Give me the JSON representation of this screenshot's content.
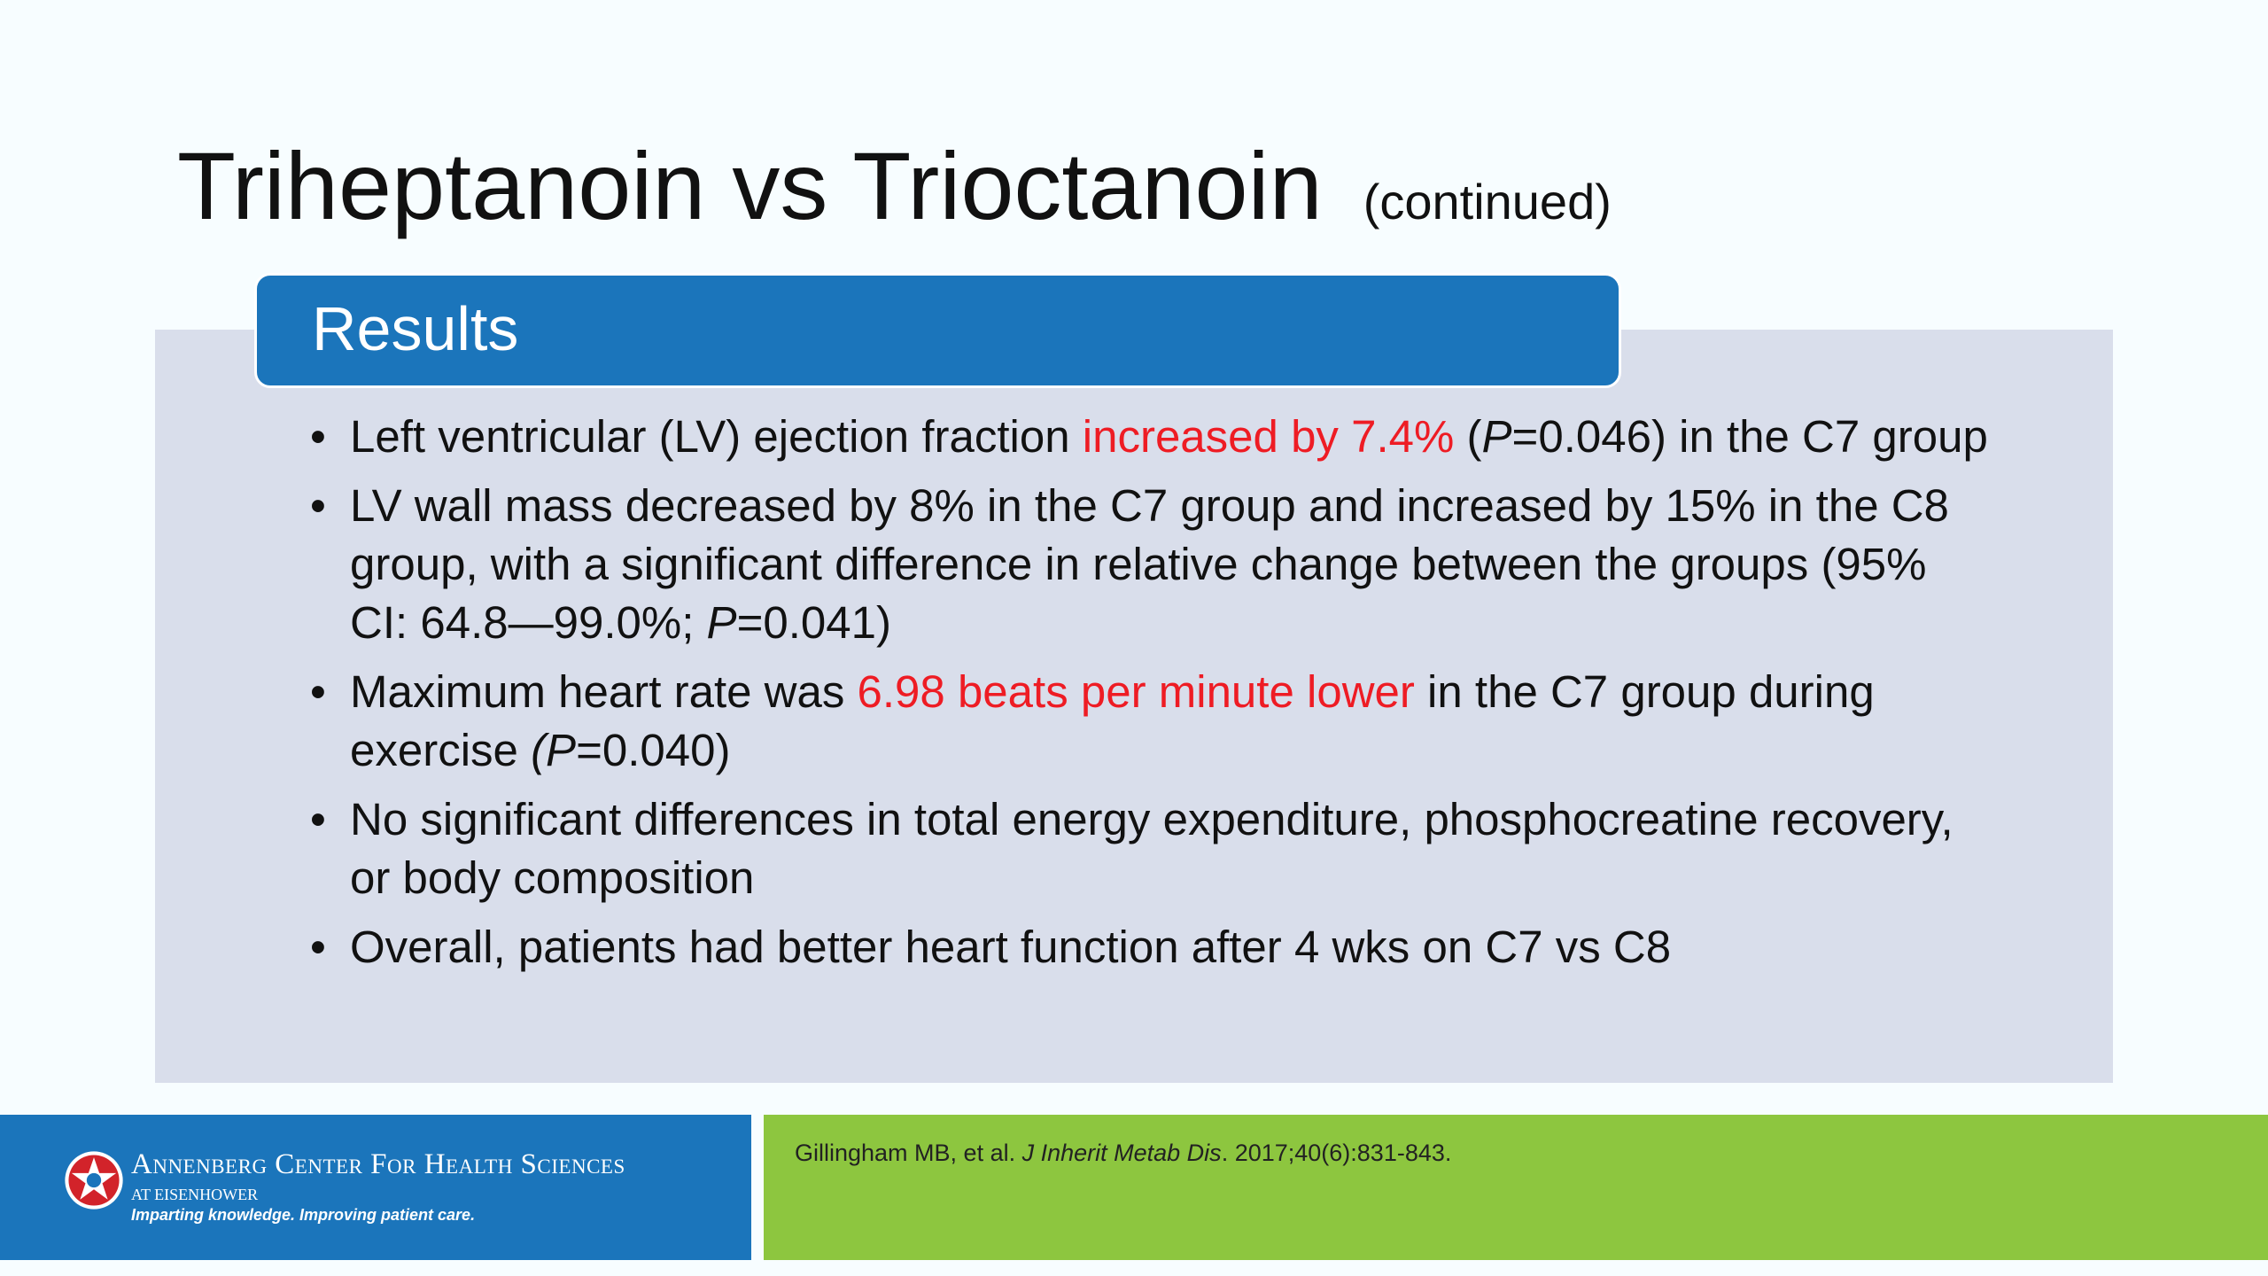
{
  "slide": {
    "title": "Triheptanoin vs Trioctanoin",
    "title_suffix": "(continued)",
    "section_header": "Results",
    "bullet_char": "•",
    "bullets": {
      "b1": {
        "t1": "Left ventricular (LV) ejection fraction ",
        "highlight": "increased by 7.4%",
        "t2": " (",
        "p": "P",
        "t3": "=0.046) in the C7 group"
      },
      "b2": {
        "t1": "LV wall mass decreased by 8% in the C7 group and increased by 15% in the C8 group, with a significant difference in relative change between the groups (95% CI: 64.8—99.0%; ",
        "p": "P",
        "t2": "=0.041)"
      },
      "b3": {
        "t1": "Maximum heart rate was ",
        "highlight": "6.98 beats per minute lower",
        "t2": " in the C7 group during exercise ",
        "p": "(P",
        "t3": "=0.040)"
      },
      "b4": {
        "t1": "No significant differences in total energy expenditure, phosphocreatine recovery, or body composition"
      },
      "b5": {
        "t1": "Overall, patients had better heart function after 4 wks on C7 vs C8"
      }
    }
  },
  "footer": {
    "logo_icon": "star-logo-icon",
    "org_name": "Annenberg Center For Health Sciences",
    "org_sub": "AT EISENHOWER",
    "tagline": "Imparting knowledge. Improving patient care.",
    "citation": {
      "authors": "Gillingham MB, et al. ",
      "journal": "J Inherit Metab Dis",
      "details": ". 2017;40(6):831-843."
    }
  },
  "colors": {
    "header_blue": "#1b75bb",
    "content_bg": "#d9deeb",
    "footer_green": "#8dc63f",
    "highlight_red": "#ee1c24",
    "slide_bg": "#f7fdff"
  }
}
